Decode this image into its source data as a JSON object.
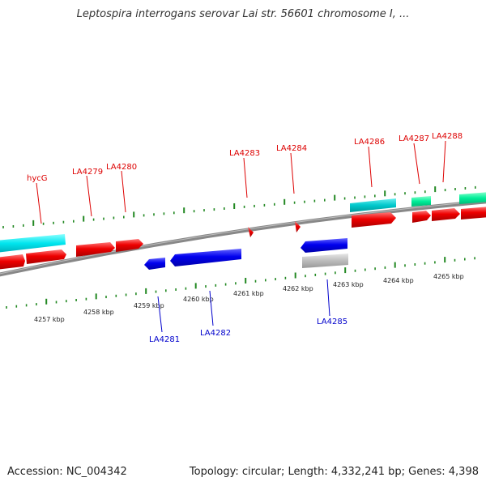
{
  "title": "Leptospira interrogans serovar Lai str. 56601 chromosome I, ...",
  "accession": "Accession: NC_004342",
  "summary": "Topology: circular; Length: 4,332,241 bp; Genes: 4,398",
  "colors": {
    "forward": "#ff0000",
    "reverse": "#0000ee",
    "cyan": "#00e5ee",
    "teal": "#00ccbb",
    "mint": "#00ee99",
    "gray": "#bbbbbb",
    "tick": "#228822",
    "backbone": "#888888"
  },
  "ticks": {
    "labels": [
      "4257 kbp",
      "4258 kbp",
      "4259 kbp",
      "4260 kbp",
      "4261 kbp",
      "4262 kbp",
      "4263 kbp",
      "4264 kbp",
      "4265 kbp"
    ]
  },
  "gene_labels_forward": [
    "hycG",
    "LA4279",
    "LA4280",
    "LA4283",
    "LA4284",
    "LA4286",
    "LA4287",
    "LA4288"
  ],
  "gene_labels_reverse": [
    "LA4281",
    "LA4282",
    "LA4285"
  ]
}
